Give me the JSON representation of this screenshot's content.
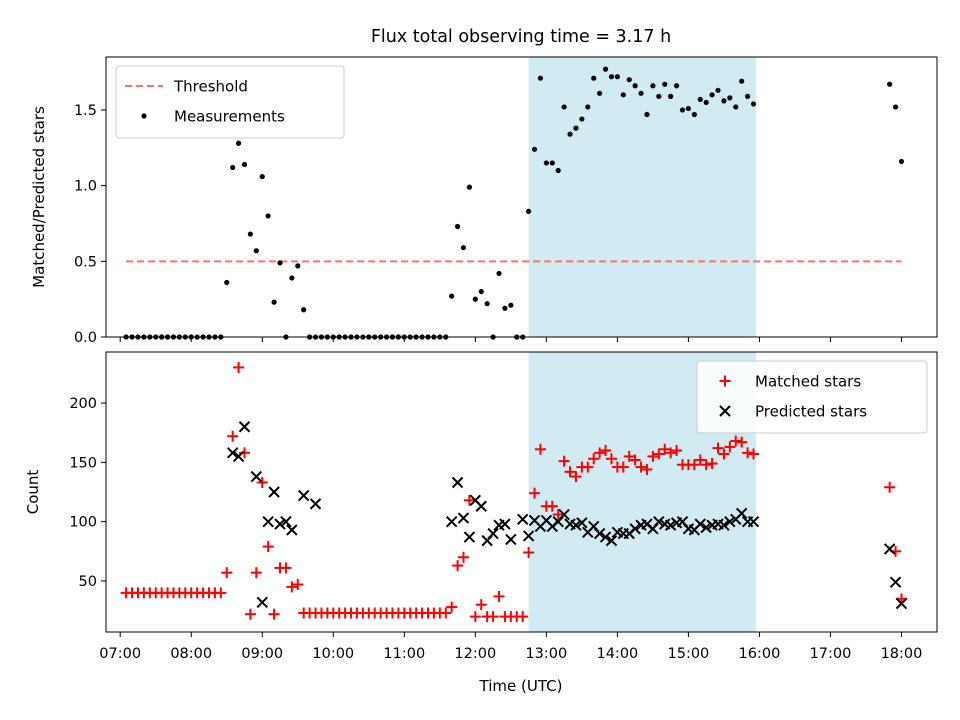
{
  "chart_data": [
    {
      "type": "scatter",
      "title": "Flux total observing time = 3.17 h",
      "ylabel": "Matched/Predicted stars",
      "xlim": [
        "06:48",
        "18:30"
      ],
      "ylim": [
        0,
        1.85
      ],
      "yticks": [
        "0.0",
        "0.5",
        "1.0",
        "1.5"
      ],
      "highlight_span": {
        "start": "12:45",
        "end": "15:57",
        "color": "#add8e6"
      },
      "legend_position": "upper-left",
      "threshold": {
        "name": "Threshold",
        "value": 0.5,
        "x_start": "07:05",
        "x_end": "18:00",
        "color": "#ff7070",
        "style": "dashed"
      },
      "series": [
        {
          "name": "Measurements",
          "marker": "dot",
          "color": "#000000",
          "x": [
            "07:05",
            "07:10",
            "07:15",
            "07:20",
            "07:25",
            "07:30",
            "07:35",
            "07:40",
            "07:45",
            "07:50",
            "07:55",
            "08:00",
            "08:05",
            "08:10",
            "08:15",
            "08:20",
            "08:25",
            "08:30",
            "08:35",
            "08:40",
            "08:45",
            "08:50",
            "08:55",
            "09:00",
            "09:05",
            "09:10",
            "09:15",
            "09:20",
            "09:25",
            "09:30",
            "09:35",
            "09:40",
            "09:45",
            "09:50",
            "09:55",
            "10:00",
            "10:05",
            "10:10",
            "10:15",
            "10:20",
            "10:25",
            "10:30",
            "10:35",
            "10:40",
            "10:45",
            "10:50",
            "10:55",
            "11:00",
            "11:05",
            "11:10",
            "11:15",
            "11:20",
            "11:25",
            "11:30",
            "11:35",
            "11:40",
            "11:45",
            "11:50",
            "11:55",
            "12:00",
            "12:05",
            "12:10",
            "12:15",
            "12:20",
            "12:25",
            "12:30",
            "12:35",
            "12:40",
            "12:45",
            "12:50",
            "12:55",
            "13:00",
            "13:05",
            "13:10",
            "13:15",
            "13:20",
            "13:25",
            "13:30",
            "13:35",
            "13:40",
            "13:45",
            "13:50",
            "13:55",
            "14:00",
            "14:05",
            "14:10",
            "14:15",
            "14:20",
            "14:25",
            "14:30",
            "14:35",
            "14:40",
            "14:45",
            "14:50",
            "14:55",
            "15:00",
            "15:05",
            "15:10",
            "15:15",
            "15:20",
            "15:25",
            "15:30",
            "15:35",
            "15:40",
            "15:45",
            "15:50",
            "15:55",
            "17:50",
            "17:55",
            "18:00"
          ],
          "y": [
            0,
            0,
            0,
            0,
            0,
            0,
            0,
            0,
            0,
            0,
            0,
            0,
            0,
            0,
            0,
            0,
            0,
            0.36,
            1.12,
            1.28,
            1.14,
            0.68,
            0.57,
            1.06,
            0.8,
            0.23,
            0.49,
            0,
            0.39,
            0.47,
            0.18,
            0,
            0,
            0,
            0,
            0,
            0,
            0,
            0,
            0,
            0,
            0,
            0,
            0,
            0,
            0,
            0,
            0,
            0,
            0,
            0,
            0,
            0,
            0,
            0,
            0.27,
            0.73,
            0.59,
            0.99,
            0.25,
            0.3,
            0.22,
            0,
            0.42,
            0.19,
            0.21,
            0,
            0,
            0.83,
            1.24,
            1.71,
            1.15,
            1.15,
            1.1,
            1.52,
            1.34,
            1.38,
            1.44,
            1.52,
            1.71,
            1.61,
            1.77,
            1.72,
            1.72,
            1.6,
            1.7,
            1.66,
            1.61,
            1.47,
            1.66,
            1.59,
            1.67,
            1.59,
            1.66,
            1.5,
            1.51,
            1.47,
            1.57,
            1.55,
            1.6,
            1.63,
            1.56,
            1.58,
            1.52,
            1.69,
            1.59,
            1.54,
            1.67,
            1.52,
            1.16
          ]
        }
      ]
    },
    {
      "type": "scatter",
      "xlabel": "Time (UTC)",
      "ylabel": "Count",
      "xlim": [
        "06:48",
        "18:30"
      ],
      "ylim": [
        7,
        243
      ],
      "yticks": [
        "50",
        "100",
        "150",
        "200"
      ],
      "xticks": [
        "07:00",
        "08:00",
        "09:00",
        "10:00",
        "11:00",
        "12:00",
        "13:00",
        "14:00",
        "15:00",
        "16:00",
        "17:00",
        "18:00"
      ],
      "highlight_span": {
        "start": "12:45",
        "end": "15:57",
        "color": "#add8e6"
      },
      "legend_position": "upper-right",
      "series": [
        {
          "name": "Matched stars",
          "marker": "plus",
          "color": "#ff0000",
          "x": [
            "07:05",
            "07:10",
            "07:15",
            "07:20",
            "07:25",
            "07:30",
            "07:35",
            "07:40",
            "07:45",
            "07:50",
            "07:55",
            "08:00",
            "08:05",
            "08:10",
            "08:15",
            "08:20",
            "08:25",
            "08:30",
            "08:35",
            "08:40",
            "08:45",
            "08:50",
            "08:55",
            "09:00",
            "09:05",
            "09:10",
            "09:15",
            "09:20",
            "09:25",
            "09:30",
            "09:35",
            "09:40",
            "09:45",
            "09:50",
            "09:55",
            "10:00",
            "10:05",
            "10:10",
            "10:15",
            "10:20",
            "10:25",
            "10:30",
            "10:35",
            "10:40",
            "10:45",
            "10:50",
            "10:55",
            "11:00",
            "11:05",
            "11:10",
            "11:15",
            "11:20",
            "11:25",
            "11:30",
            "11:35",
            "11:40",
            "11:45",
            "11:50",
            "11:55",
            "12:00",
            "12:05",
            "12:10",
            "12:15",
            "12:20",
            "12:25",
            "12:30",
            "12:35",
            "12:40",
            "12:45",
            "12:50",
            "12:55",
            "13:00",
            "13:05",
            "13:10",
            "13:15",
            "13:20",
            "13:25",
            "13:30",
            "13:35",
            "13:40",
            "13:45",
            "13:50",
            "13:55",
            "14:00",
            "14:05",
            "14:10",
            "14:15",
            "14:20",
            "14:25",
            "14:30",
            "14:35",
            "14:40",
            "14:45",
            "14:50",
            "14:55",
            "15:00",
            "15:05",
            "15:10",
            "15:15",
            "15:20",
            "15:25",
            "15:30",
            "15:35",
            "15:40",
            "15:45",
            "15:50",
            "15:55",
            "17:50",
            "17:55",
            "18:00"
          ],
          "y": [
            40,
            40,
            40,
            40,
            40,
            40,
            40,
            40,
            40,
            40,
            40,
            40,
            40,
            40,
            40,
            40,
            40,
            57,
            172,
            230,
            158,
            22,
            57,
            133,
            79,
            22,
            61,
            61,
            45,
            47,
            23,
            23,
            23,
            23,
            23,
            23,
            23,
            23,
            23,
            23,
            23,
            23,
            23,
            23,
            23,
            23,
            23,
            23,
            23,
            23,
            23,
            23,
            23,
            23,
            23,
            28,
            63,
            70,
            118,
            20,
            30,
            20,
            20,
            37,
            20,
            20,
            20,
            20,
            74,
            124,
            161,
            113,
            113,
            106,
            151,
            142,
            138,
            146,
            146,
            153,
            158,
            160,
            153,
            146,
            146,
            155,
            152,
            146,
            144,
            155,
            157,
            161,
            158,
            160,
            148,
            148,
            148,
            152,
            148,
            149,
            162,
            157,
            163,
            168,
            167,
            158,
            157,
            129,
            75,
            35
          ]
        },
        {
          "name": "Predicted stars",
          "marker": "x",
          "color": "#000000",
          "x": [
            "08:35",
            "08:40",
            "08:45",
            "08:55",
            "09:00",
            "09:05",
            "09:10",
            "09:15",
            "09:20",
            "09:25",
            "09:35",
            "09:45",
            "11:40",
            "11:45",
            "11:50",
            "11:55",
            "12:00",
            "12:05",
            "12:10",
            "12:15",
            "12:20",
            "12:25",
            "12:30",
            "12:40",
            "12:45",
            "12:50",
            "12:55",
            "13:00",
            "13:05",
            "13:10",
            "13:15",
            "13:20",
            "13:25",
            "13:30",
            "13:35",
            "13:40",
            "13:45",
            "13:50",
            "13:55",
            "14:00",
            "14:05",
            "14:10",
            "14:15",
            "14:20",
            "14:25",
            "14:30",
            "14:35",
            "14:40",
            "14:45",
            "14:50",
            "14:55",
            "15:00",
            "15:05",
            "15:10",
            "15:15",
            "15:20",
            "15:25",
            "15:30",
            "15:35",
            "15:40",
            "15:45",
            "15:50",
            "15:55",
            "17:50",
            "17:55",
            "18:00"
          ],
          "y": [
            158,
            155,
            180,
            138,
            32,
            100,
            125,
            98,
            100,
            93,
            122,
            115,
            100,
            133,
            103,
            87,
            118,
            113,
            84,
            90,
            97,
            98,
            85,
            102,
            88,
            101,
            96,
            101,
            96,
            100,
            106,
            98,
            97,
            99,
            91,
            96,
            90,
            87,
            84,
            91,
            90,
            90,
            94,
            97,
            98,
            94,
            100,
            98,
            97,
            99,
            100,
            94,
            93,
            98,
            95,
            97,
            98,
            97,
            100,
            102,
            107,
            100,
            100,
            77,
            49,
            31
          ]
        }
      ]
    }
  ]
}
